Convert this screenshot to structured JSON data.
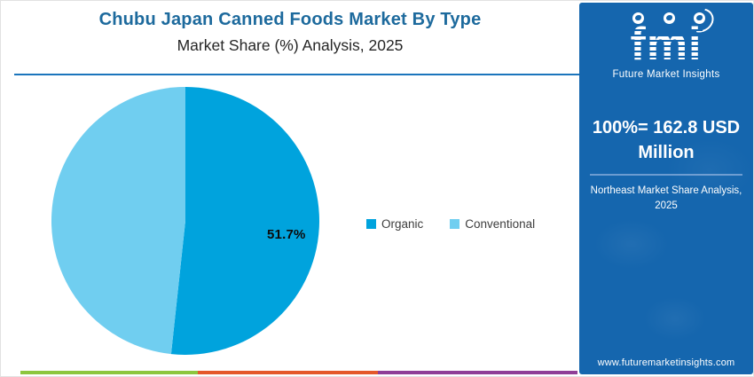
{
  "header": {
    "title": "Chubu Japan Canned Foods Market By Type",
    "subtitle": "Market Share (%) Analysis, 2025"
  },
  "chart_data": {
    "type": "pie",
    "title": "Chubu Japan Canned Foods Market By Type",
    "subtitle": "Market Share (%) Analysis, 2025",
    "start_angle_deg": 0,
    "direction": "clockwise",
    "legend_position": "right-of-chart",
    "slices": [
      {
        "label": "Organic",
        "value": 51.7,
        "color": "#00A3DD",
        "data_label": "51.7%"
      },
      {
        "label": "Conventional",
        "value": 48.3,
        "color": "#70CEF0",
        "data_label": ""
      }
    ]
  },
  "sidebar": {
    "bg_color": "#1566AE",
    "logo": {
      "monogram": "fmi",
      "tagline": "Future Market Insights"
    },
    "headline": "100%= 162.8 USD Million",
    "note": "Northeast Market Share Analysis, 2025",
    "website": "www.futuremarketinsights.com"
  },
  "footer_bar": {
    "colors": [
      "#8CC63E",
      "#E4592B",
      "#8F3E97"
    ]
  }
}
